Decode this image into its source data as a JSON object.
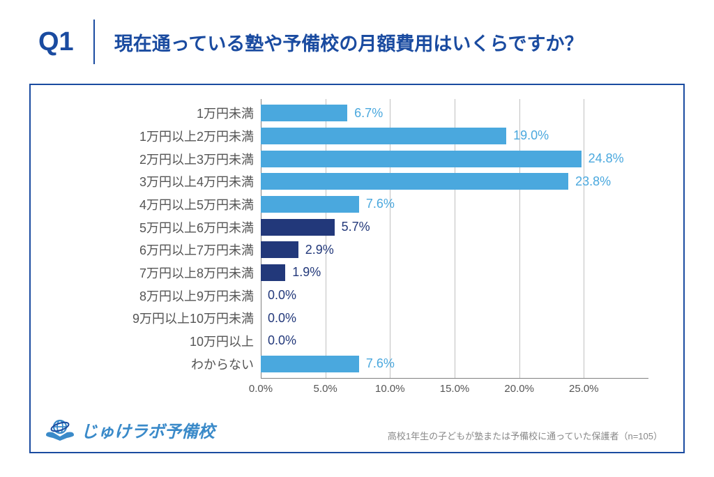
{
  "header": {
    "q_number": "Q1",
    "title": "現在通っている塾や予備校の月額費用はいくらですか？"
  },
  "chart": {
    "type": "horizontal-bar",
    "xlim": [
      0,
      30
    ],
    "xticks": [
      0,
      5,
      10,
      15,
      20,
      25
    ],
    "xtick_labels": [
      "0.0%",
      "5.0%",
      "10.0%",
      "15.0%",
      "20.0%",
      "25.0%"
    ],
    "grid_color": "#c0c0c0",
    "label_color": "#555555",
    "label_fontsize": 18,
    "value_fontsize": 18,
    "light_color": "#4aa8de",
    "dark_color": "#22387a",
    "rows": [
      {
        "label": "1万円未満",
        "value": 6.7,
        "display": "6.7%",
        "color": "light",
        "text_color": "#4aa8de"
      },
      {
        "label": "1万円以上2万円未満",
        "value": 19.0,
        "display": "19.0%",
        "color": "light",
        "text_color": "#4aa8de"
      },
      {
        "label": "2万円以上3万円未満",
        "value": 24.8,
        "display": "24.8%",
        "color": "light",
        "text_color": "#4aa8de"
      },
      {
        "label": "3万円以上4万円未満",
        "value": 23.8,
        "display": "23.8%",
        "color": "light",
        "text_color": "#4aa8de"
      },
      {
        "label": "4万円以上5万円未満",
        "value": 7.6,
        "display": "7.6%",
        "color": "light",
        "text_color": "#4aa8de"
      },
      {
        "label": "5万円以上6万円未満",
        "value": 5.7,
        "display": "5.7%",
        "color": "dark",
        "text_color": "#22387a"
      },
      {
        "label": "6万円以上7万円未満",
        "value": 2.9,
        "display": "2.9%",
        "color": "dark",
        "text_color": "#22387a"
      },
      {
        "label": "7万円以上8万円未満",
        "value": 1.9,
        "display": "1.9%",
        "color": "dark",
        "text_color": "#22387a"
      },
      {
        "label": "8万円以上9万円未満",
        "value": 0.0,
        "display": "0.0%",
        "color": "dark",
        "text_color": "#22387a"
      },
      {
        "label": "9万円以上10万円未満",
        "value": 0.0,
        "display": "0.0%",
        "color": "dark",
        "text_color": "#22387a"
      },
      {
        "label": "10万円以上",
        "value": 0.0,
        "display": "0.0%",
        "color": "dark",
        "text_color": "#22387a"
      },
      {
        "label": "わからない",
        "value": 7.6,
        "display": "7.6%",
        "color": "light",
        "text_color": "#4aa8de"
      }
    ]
  },
  "footer": {
    "logo_text": "じゅけラボ予備校",
    "note": "高校1年生の子どもが塾または予備校に通っていた保護者（n=105）"
  }
}
